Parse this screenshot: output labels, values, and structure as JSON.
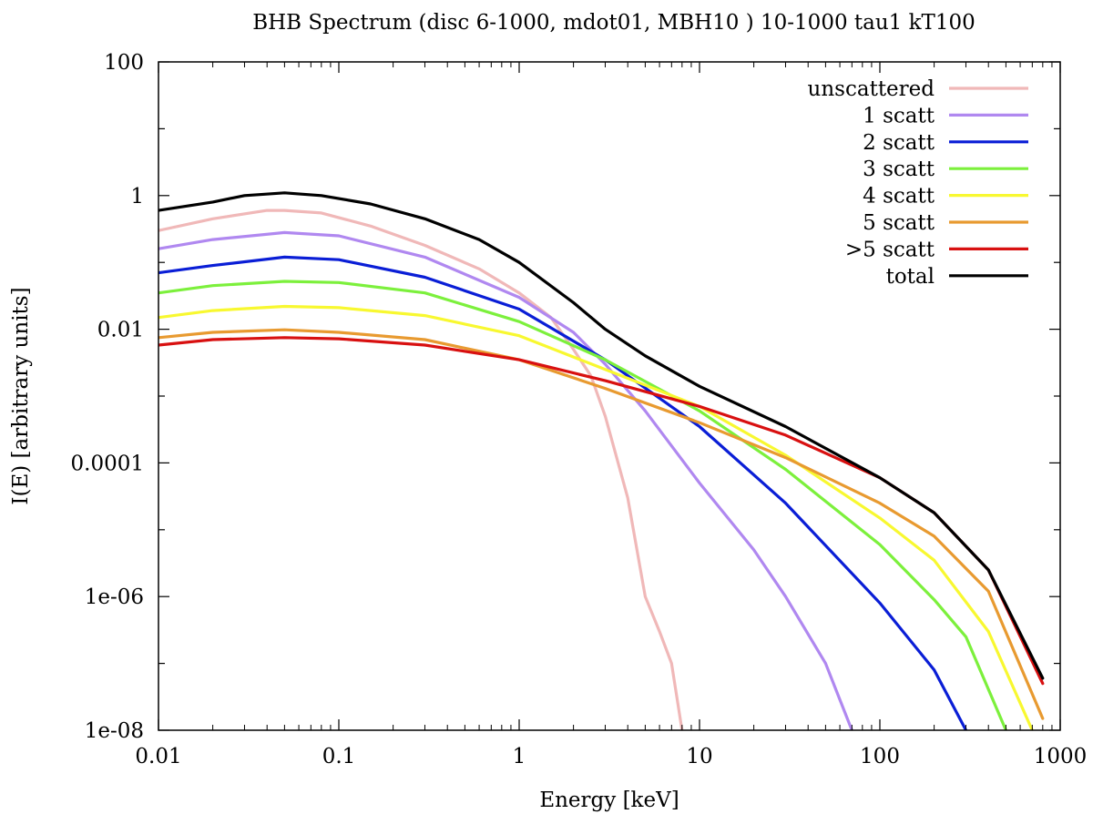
{
  "chart_data": {
    "type": "line",
    "title": "BHB Spectrum (disc 6-1000, mdot01, MBH10 ) 10-1000 tau1 kT100",
    "xlabel": "Energy [keV]",
    "ylabel": "I(E) [arbitrary units]",
    "xscale": "log",
    "yscale": "log",
    "xlim": [
      0.01,
      1000
    ],
    "ylim": [
      1e-08,
      100
    ],
    "x_tick_values": [
      0.01,
      0.1,
      1,
      10,
      100,
      1000
    ],
    "x_tick_labels": [
      "0.01",
      "0.1",
      "1",
      "10",
      "100",
      "1000"
    ],
    "y_tick_values": [
      1e-08,
      1e-06,
      0.0001,
      0.01,
      1,
      100
    ],
    "y_tick_labels": [
      "1e-08",
      "1e-06",
      "0.0001",
      "0.01",
      "1",
      "100"
    ],
    "grid": false,
    "legend_position": "top-right",
    "series": [
      {
        "name": "unscattered",
        "color": "#f0b8b8",
        "x": [
          0.01,
          0.02,
          0.04,
          0.05,
          0.08,
          0.15,
          0.3,
          0.6,
          1.0,
          1.5,
          2.0,
          2.5,
          3.0,
          4.0,
          5.0,
          6.0,
          7.0,
          8.0
        ],
        "y": [
          0.3,
          0.45,
          0.6,
          0.6,
          0.55,
          0.35,
          0.18,
          0.08,
          0.035,
          0.015,
          0.005,
          0.002,
          0.0005,
          3e-05,
          1e-06,
          3e-07,
          1e-07,
          1e-08
        ]
      },
      {
        "name": "1 scatt",
        "color": "#b088f0",
        "x": [
          0.01,
          0.02,
          0.05,
          0.1,
          0.3,
          1,
          2,
          3,
          5,
          10,
          20,
          30,
          50,
          70
        ],
        "y": [
          0.16,
          0.22,
          0.28,
          0.25,
          0.12,
          0.03,
          0.009,
          0.003,
          0.0006,
          5e-05,
          5e-06,
          1e-06,
          1e-07,
          1e-08
        ]
      },
      {
        "name": "2 scatt",
        "color": "#0a1ed6",
        "x": [
          0.01,
          0.02,
          0.05,
          0.1,
          0.3,
          1,
          3,
          10,
          30,
          100,
          200,
          300
        ],
        "y": [
          0.07,
          0.09,
          0.12,
          0.11,
          0.06,
          0.02,
          0.0035,
          0.00035,
          2.5e-05,
          8e-07,
          8e-08,
          1e-08
        ]
      },
      {
        "name": "3 scatt",
        "color": "#7cf03c",
        "x": [
          0.01,
          0.02,
          0.05,
          0.1,
          0.3,
          1,
          3,
          10,
          30,
          100,
          200,
          300,
          500
        ],
        "y": [
          0.035,
          0.045,
          0.052,
          0.05,
          0.035,
          0.013,
          0.0035,
          0.0006,
          8e-05,
          6e-06,
          9e-07,
          2.5e-07,
          1e-08
        ]
      },
      {
        "name": "4 scatt",
        "color": "#f8f830",
        "x": [
          0.01,
          0.02,
          0.05,
          0.1,
          0.3,
          1,
          3,
          10,
          30,
          100,
          200,
          400,
          700
        ],
        "y": [
          0.015,
          0.019,
          0.022,
          0.021,
          0.016,
          0.008,
          0.0025,
          0.0007,
          0.00013,
          1.5e-05,
          3.5e-06,
          3e-07,
          1e-08
        ]
      },
      {
        "name": "5 scatt",
        "color": "#e89a30",
        "x": [
          0.01,
          0.02,
          0.05,
          0.1,
          0.3,
          1,
          3,
          10,
          30,
          100,
          200,
          400,
          800
        ],
        "y": [
          0.0075,
          0.009,
          0.0098,
          0.009,
          0.007,
          0.0035,
          0.0013,
          0.0004,
          0.00012,
          2.5e-05,
          8e-06,
          1.2e-06,
          1.5e-08
        ]
      },
      {
        "name": ">5 scatt",
        "color": "#d81010",
        "x": [
          0.01,
          0.02,
          0.05,
          0.1,
          0.3,
          1,
          3,
          10,
          30,
          100,
          200,
          400,
          800
        ],
        "y": [
          0.0058,
          0.007,
          0.0075,
          0.0072,
          0.0058,
          0.0035,
          0.0017,
          0.0007,
          0.00026,
          6e-05,
          1.8e-05,
          2.5e-06,
          5e-08
        ]
      },
      {
        "name": "total",
        "color": "#000000",
        "x": [
          0.01,
          0.02,
          0.03,
          0.05,
          0.08,
          0.15,
          0.3,
          0.6,
          1.0,
          2.0,
          3.0,
          5.0,
          10,
          30,
          100,
          200,
          400,
          800
        ],
        "y": [
          0.6,
          0.8,
          1.0,
          1.1,
          1.0,
          0.75,
          0.45,
          0.22,
          0.1,
          0.025,
          0.01,
          0.004,
          0.0014,
          0.00035,
          6e-05,
          1.8e-05,
          2.5e-06,
          6e-08
        ]
      }
    ]
  }
}
